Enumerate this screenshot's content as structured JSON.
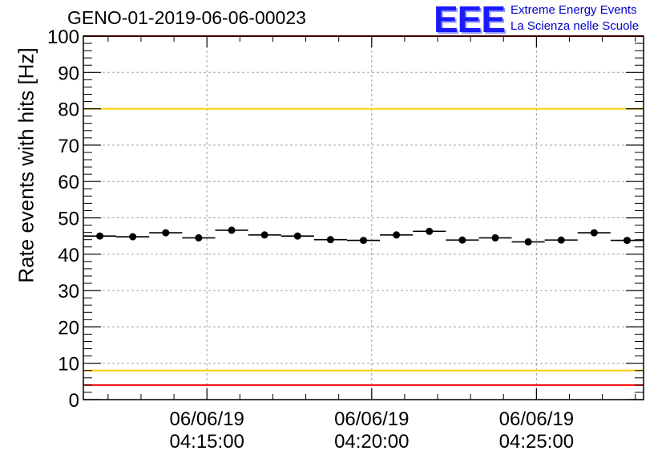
{
  "header": {
    "run_title": "GENO-01-2019-06-06-00023",
    "logo_text": "EEE",
    "tagline_1": "Extreme Energy Events",
    "tagline_2": "La Scienza nelle Scuole"
  },
  "chart_data": {
    "type": "scatter",
    "title": "GENO-01-2019-06-06-00023",
    "xlabel": "",
    "ylabel": "Rate events with hits [Hz]",
    "ylim": [
      0,
      100
    ],
    "yticks": [
      0,
      10,
      20,
      30,
      40,
      50,
      60,
      70,
      80,
      90,
      100
    ],
    "xlim": [
      "04:11:15",
      "04:28:15"
    ],
    "xticks": [
      {
        "time": "04:15:00",
        "date": "06/06/19",
        "label": "04:15:00"
      },
      {
        "time": "04:20:00",
        "date": "06/06/19",
        "label": "04:20:00"
      },
      {
        "time": "04:25:00",
        "date": "06/06/19",
        "label": "04:25:00"
      }
    ],
    "grid": true,
    "reference_lines": [
      {
        "y": 80,
        "color": "#ffcc00"
      },
      {
        "y": 8,
        "color": "#ffcc00"
      },
      {
        "y": 4,
        "color": "#ff0000"
      },
      {
        "y": 100,
        "color": "#ff0000"
      }
    ],
    "bin_width_s": 60,
    "points": [
      {
        "x": "04:11:45",
        "y": 45.0
      },
      {
        "x": "04:12:45",
        "y": 44.8
      },
      {
        "x": "04:13:45",
        "y": 45.9
      },
      {
        "x": "04:14:45",
        "y": 44.5
      },
      {
        "x": "04:15:45",
        "y": 46.6
      },
      {
        "x": "04:16:45",
        "y": 45.3
      },
      {
        "x": "04:17:45",
        "y": 45.0
      },
      {
        "x": "04:18:45",
        "y": 44.0
      },
      {
        "x": "04:19:45",
        "y": 43.8
      },
      {
        "x": "04:20:45",
        "y": 45.3
      },
      {
        "x": "04:21:45",
        "y": 46.3
      },
      {
        "x": "04:22:45",
        "y": 43.9
      },
      {
        "x": "04:23:45",
        "y": 44.5
      },
      {
        "x": "04:24:45",
        "y": 43.4
      },
      {
        "x": "04:25:45",
        "y": 43.9
      },
      {
        "x": "04:26:45",
        "y": 45.9
      },
      {
        "x": "04:27:45",
        "y": 43.8
      }
    ],
    "marker_color": "#000000"
  }
}
